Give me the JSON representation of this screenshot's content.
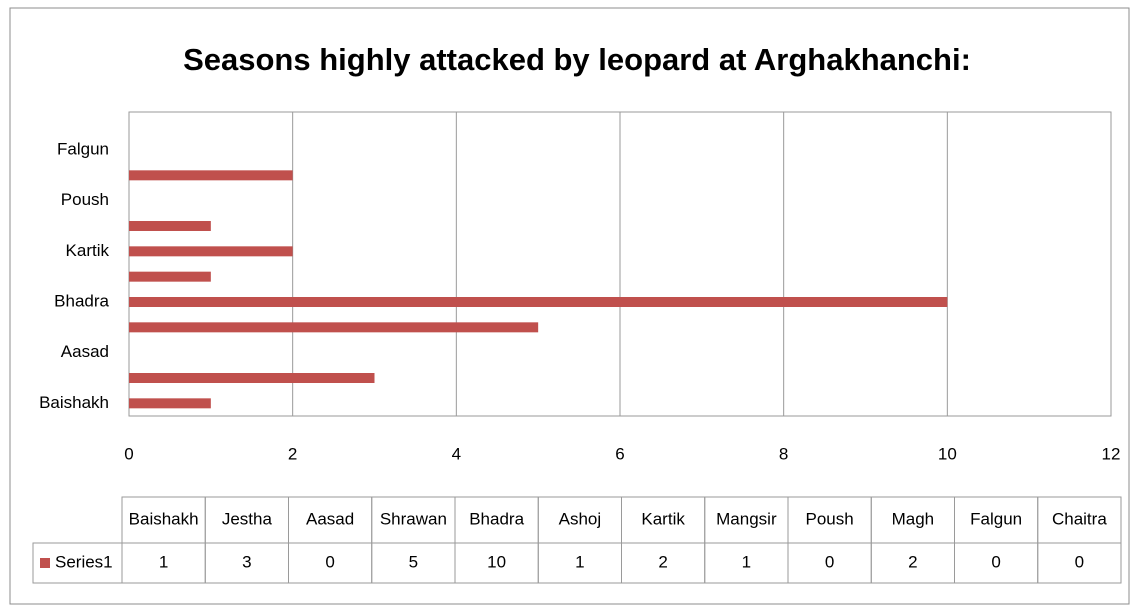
{
  "chart_data": {
    "type": "bar",
    "orientation": "horizontal",
    "title": "Seasons highly attacked by leopard at Arghakhanchi:",
    "categories": [
      "Baishakh",
      "Jestha",
      "Aasad",
      "Shrawan",
      "Bhadra",
      "Ashoj",
      "Kartik",
      "Mangsir",
      "Poush",
      "Magh",
      "Falgun",
      "Chaitra"
    ],
    "series": [
      {
        "name": "Series1",
        "color": "#c0504d",
        "values": [
          1,
          3,
          0,
          5,
          10,
          1,
          2,
          1,
          0,
          2,
          0,
          0
        ]
      }
    ],
    "xlim": [
      0,
      12
    ],
    "xticks": [
      0,
      2,
      4,
      6,
      8,
      10,
      12
    ],
    "grid": true,
    "category_label_interval": 2,
    "data_table": true
  }
}
